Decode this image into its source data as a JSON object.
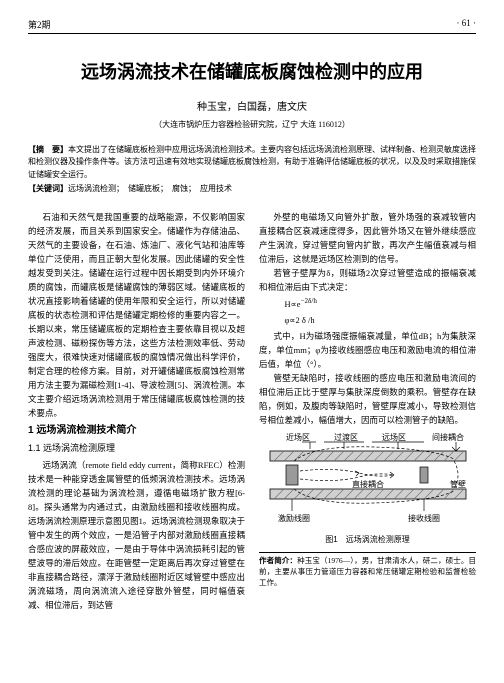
{
  "header": {
    "issue": "第2期",
    "page": "· 61 ·"
  },
  "title": "远场涡流技术在储罐底板腐蚀检测中的应用",
  "authors": "种玉宝，白国磊，唐文庆",
  "affiliation": "（大连市锅炉压力容器检验研究院，辽宁 大连 116012）",
  "abstract": {
    "label1": "【摘　要】",
    "text1": "本文提出了在储罐底板检测中应用远场涡流检测技术。主要内容包括远场涡流检测原理、试样制备、检测灵敏度选择和检测仪器及操作条件等。该方法可迅速有效地实现储罐底板腐蚀检测，有助于准确评估储罐底板的状况，以及及时采取措施保证储罐安全运行。",
    "label2": "【关键词】",
    "text2": "远场涡流检测；　储罐底板；　腐蚀；　应用技术"
  },
  "left": {
    "p1": "石油和天然气是我国重要的战略能源，不仅影响国家的经济发展，而且关系到国家安全。储罐作为存储油品、天然气的主要设备，在石油、炼油厂、液化气站和油库等单位广泛使用，而且正朝大型化发展。因此储罐的安全性越发受到关注。储罐在运行过程中因长期受到内外环境介质的腐蚀，而罐底板是储罐腐蚀的薄弱区域。储罐底板的状况直接影响着储罐的使用年限和安全运行，所以对储罐底板的状态检测和评估是储罐定期检修的重要内容之一。长期以来，常压储罐底板的定期检查主要依靠目视以及超声波检测、磁粉探伤等方法，这些方法检测效率低、劳动强度大，很难快速对储罐底板的腐蚀情况做出科学评价，制定合理的检修方案。目前，对开罐储罐底板腐蚀检测常用方法主要为漏磁检测[1-4]、导波检测[5]、涡流检测。本文主要介绍远场涡流检测用于常压储罐底板腐蚀检测的技术要点。",
    "h1": "1 远场涡流检测技术简介",
    "h2": "1.1 远场涡流检测原理",
    "p2": "远场涡流（remote field eddy current，简称RFEC）检测技术是一种能穿透金属管壁的低频涡流检测技术。远场涡流检测的理论基础为涡流检测，遵循电磁场扩散方程[6-8]。探头通常为内通过式，由激励线圈和接收线圈构成。远场涡流检测原理示意图见图1。远场涡流检测现象取决于管中发生的两个效应，一是沿管子内部对激励线圈直接耦合感应波的屏蔽效应，一是由于导体中涡流损耗引起的管壁波导的滞后效应。在距管壁一定距离后再次穿过管壁在非直接耦合路径，漂浮于激励线圈附近区域管壁中感应出涡流磁场，周向涡流流入途径穿散外管壁，同时幅值衰减、相位滞后，到达管"
  },
  "right": {
    "p1": "外壁的电磁场又向管外扩散，管外场强的衰减较管内直接耦合区衰减速度得多，因此管外场又在管外继续感应产生涡流，穿过管壁向管内扩散，再次产生幅值衰减与相位滞后，这就是远场区检测到的信号。",
    "p2": "若管子壁厚为δ，则磁场2次穿过管壁造成的振幅衰减和相位滞后由下式决定：",
    "f1": "H∝e<sup>−2δ/h</sup>",
    "f2": "φ∝2 δ /h",
    "p3": "式中，H为磁场强度振幅衰减量，单位dB；h为集肤深度，单位mm；φ为接收线圈感应电压和激励电流的相位滞后值，单位（°）。",
    "p4": "管壁无缺陷时，接收线圈的感应电压和激励电流间的相位滞后正比于壁厚与集肤深度倒数的乘积。管壁存在缺陷，例如，及腹肉等缺陷时，管壁厚度减小，导致检测信号相位差减小，幅值增大，因而可以检测管子的缺陷。",
    "fig": {
      "labels": {
        "near": "近场区",
        "trans": "过渡区",
        "far": "远场区",
        "indirect": "间接耦合",
        "direct": "直接耦合",
        "wall": "管壁",
        "receive": "接收线圈",
        "excite": "激励线圈"
      },
      "caption": "图1　远场涡流检测原理"
    },
    "bio": {
      "label": "作者简介：",
      "text": "种玉宝（1976—），男，甘肃清水人，研二，硕士。目前，主要从事压力管道压力容器和常压储罐定期检验和监督检验工作。"
    }
  },
  "style": {
    "colors": {
      "bg": "#ffffff",
      "text": "#000000",
      "rule": "#000000",
      "fig_gray_light": "#d0d0d0",
      "fig_gray_dark": "#6f6f6f",
      "fig_hatch": "#9a9a9a"
    },
    "fonts": {
      "body_pt": 8.5,
      "title_pt": 18,
      "authors_pt": 10,
      "caption_pt": 8
    }
  }
}
